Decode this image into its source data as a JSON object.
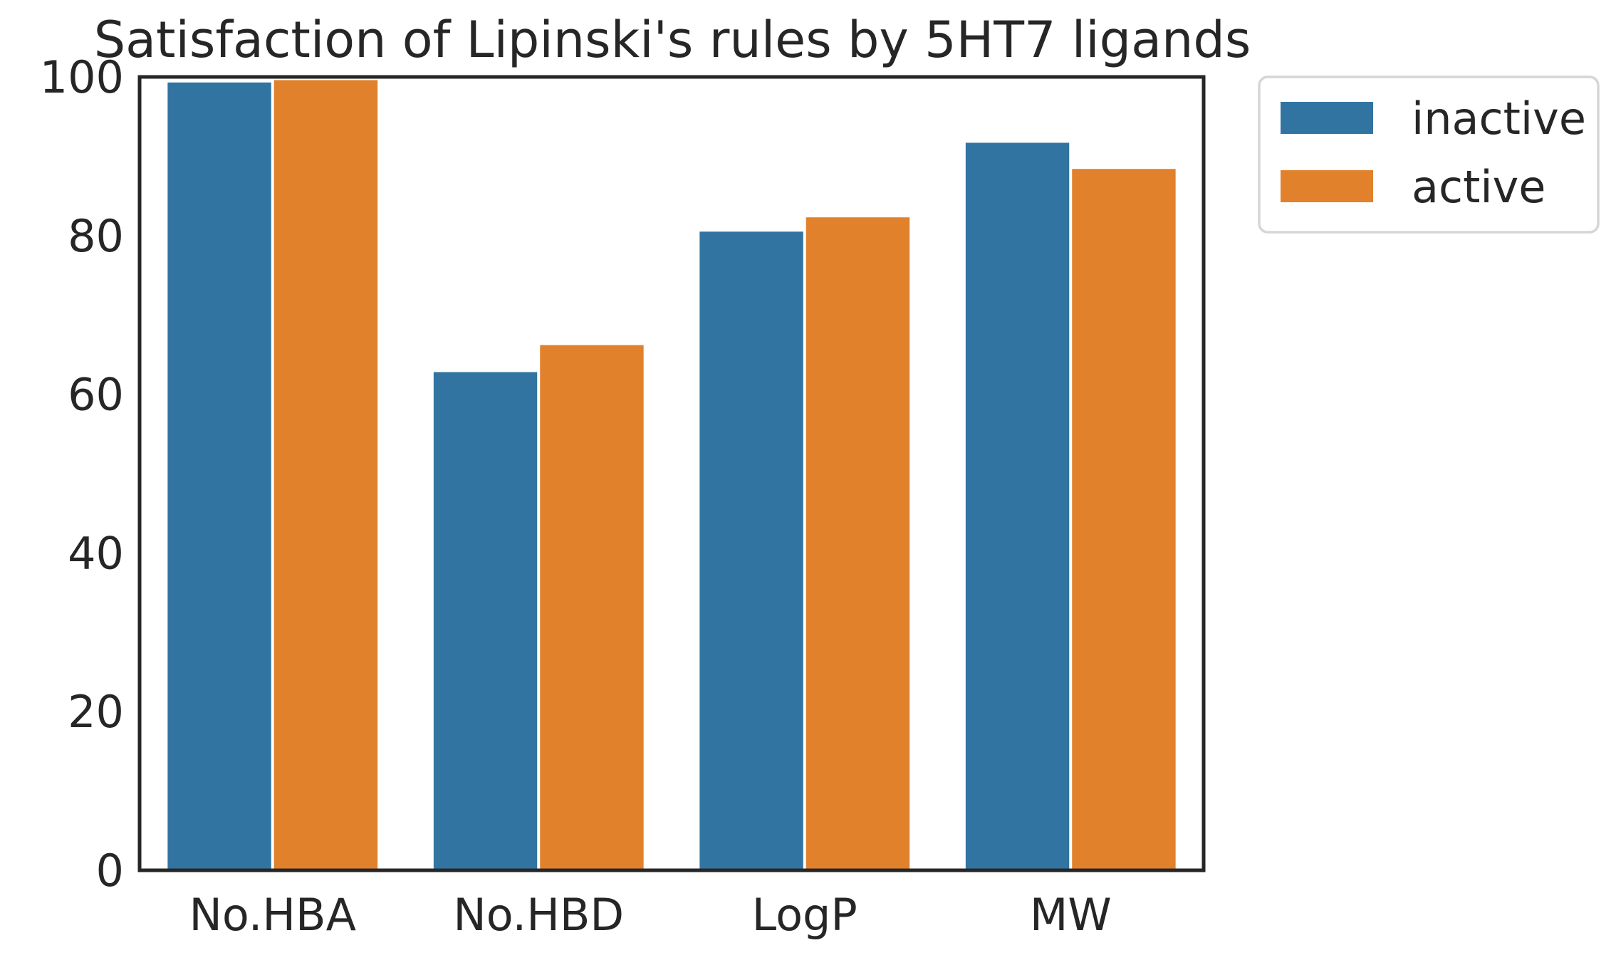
{
  "chart_data": {
    "type": "bar",
    "title": "Satisfaction of Lipinski's rules by 5HT7 ligands",
    "xlabel": "",
    "ylabel": "",
    "categories": [
      "No.HBA",
      "No.HBD",
      "LogP",
      "MW"
    ],
    "series": [
      {
        "name": "inactive",
        "color": "#3274a1",
        "values": [
          99.3,
          62.8,
          80.5,
          91.7
        ]
      },
      {
        "name": "active",
        "color": "#e1812c",
        "values": [
          99.6,
          66.2,
          82.3,
          88.4
        ]
      }
    ],
    "ylim": [
      0,
      100
    ],
    "yticks": [
      0,
      20,
      40,
      60,
      80,
      100
    ],
    "grid": false,
    "legend_position": "outside-top-right"
  }
}
